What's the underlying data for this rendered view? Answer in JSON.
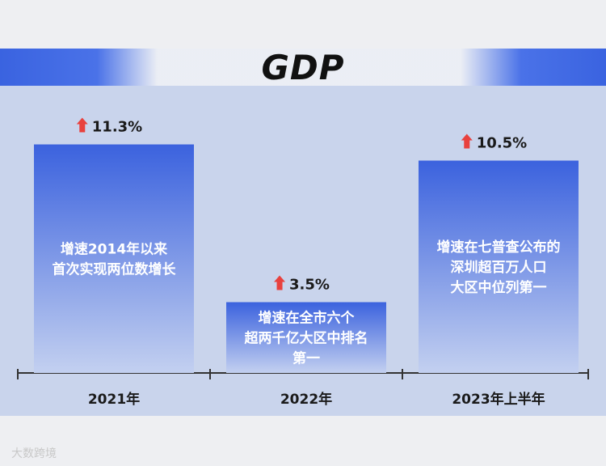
{
  "chart_data": {
    "type": "bar",
    "title": "GDP",
    "categories": [
      "2021年",
      "2022年",
      "2023年上半年"
    ],
    "values": [
      11.3,
      3.5,
      10.5
    ],
    "value_labels": [
      "11.3%",
      "3.5%",
      "10.5%"
    ],
    "bar_texts": [
      [
        "增速2014年以来",
        "首次实现两位数增长"
      ],
      [
        "增速在全市六个",
        "超两千亿大区中排名",
        "第一"
      ],
      [
        "增速在七普查公布的",
        "深圳超百万人口",
        "大区中位列第一"
      ]
    ],
    "ylim": [
      0,
      12
    ],
    "grid": false,
    "colors": {
      "bar_top": "#3b62de",
      "bar_bottom": "#c3d0f0",
      "arrow": "#e8413e",
      "axis": "#333333"
    }
  },
  "watermark": "大数跨境"
}
